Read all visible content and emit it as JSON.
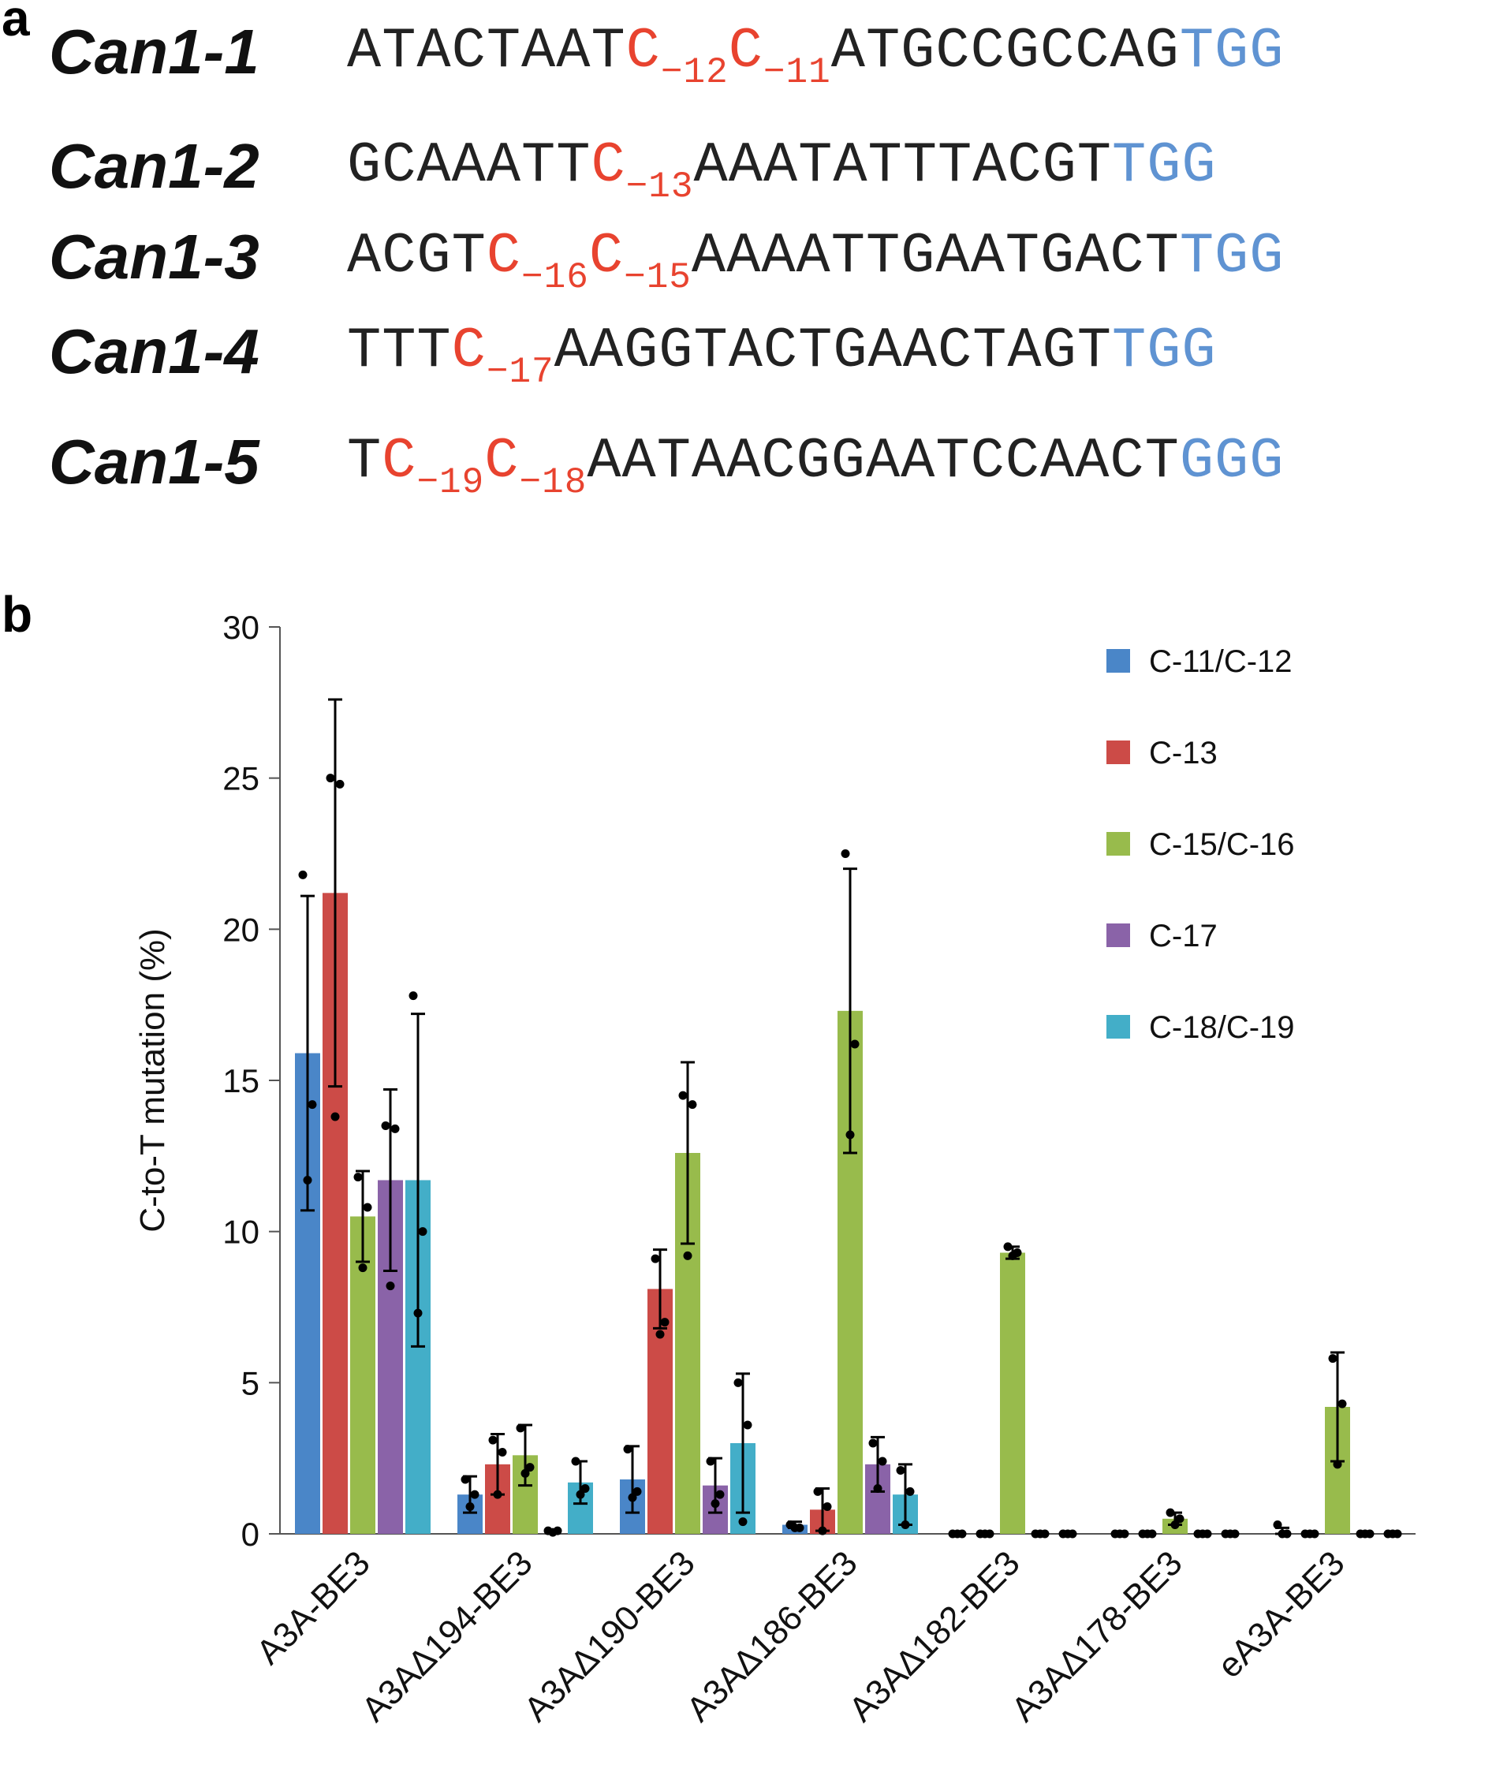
{
  "panel_a": {
    "label": "a",
    "rows": [
      {
        "name": "Can1-1",
        "segments": [
          {
            "text": "ATACTAAT",
            "color": "black"
          },
          {
            "text": "C",
            "sub": "−12",
            "color": "red"
          },
          {
            "text": "C",
            "sub": "−11",
            "color": "red"
          },
          {
            "text": "ATGCCGCCAG",
            "color": "black"
          },
          {
            "text": "TGG",
            "color": "blue"
          }
        ]
      },
      {
        "name": "Can1-2",
        "segments": [
          {
            "text": "GCAAATT",
            "color": "black"
          },
          {
            "text": "C",
            "sub": "−13",
            "color": "red"
          },
          {
            "text": "AAATATTTACGT",
            "color": "black"
          },
          {
            "text": "TGG",
            "color": "blue"
          }
        ]
      },
      {
        "name": "Can1-3",
        "segments": [
          {
            "text": "ACGT",
            "color": "black"
          },
          {
            "text": "C",
            "sub": "−16",
            "color": "red"
          },
          {
            "text": "C",
            "sub": "−15",
            "color": "red"
          },
          {
            "text": "AAAATTGAATGACT",
            "color": "black"
          },
          {
            "text": "TGG",
            "color": "blue"
          }
        ]
      },
      {
        "name": "Can1-4",
        "segments": [
          {
            "text": "TTT",
            "color": "black"
          },
          {
            "text": "C",
            "sub": "−17",
            "color": "red"
          },
          {
            "text": "AAGGTACTGAACTAGT",
            "color": "black"
          },
          {
            "text": "TGG",
            "color": "blue"
          }
        ]
      },
      {
        "name": "Can1-5",
        "segments": [
          {
            "text": "T",
            "color": "black"
          },
          {
            "text": "C",
            "sub": "−19",
            "color": "red"
          },
          {
            "text": "C",
            "sub": "−18",
            "color": "red"
          },
          {
            "text": "AATAACGGAATCCAACT",
            "color": "black"
          },
          {
            "text": "GGG",
            "color": "blue"
          }
        ]
      }
    ]
  },
  "panel_b": {
    "label": "b"
  },
  "colors": {
    "C-11/C-12": "#4a86c8",
    "C-13": "#cc4b47",
    "C-15/C-16": "#98bb4c",
    "C-17": "#8a63a8",
    "C-18/C-19": "#43aec8"
  },
  "chart_data": {
    "type": "bar",
    "title": "",
    "xlabel": "",
    "ylabel": "C-to-T mutation (%)",
    "ylim": [
      0,
      30
    ],
    "yticks": [
      0,
      5,
      10,
      15,
      20,
      25,
      30
    ],
    "legend_position": "top-right",
    "categories": [
      "A3A-BE3",
      "A3AΔ194-BE3",
      "A3AΔ190-BE3",
      "A3AΔ186-BE3",
      "A3AΔ182-BE3",
      "A3AΔ178-BE3",
      "eA3A-BE3"
    ],
    "series": [
      {
        "name": "C-11/C-12",
        "values": [
          15.9,
          1.3,
          1.8,
          0.3,
          0,
          0,
          0.1
        ],
        "errors": [
          5.2,
          0.6,
          1.1,
          0.1,
          0,
          0,
          0.1
        ],
        "points": [
          [
            21.8,
            14.2,
            11.7
          ],
          [
            1.8,
            1.3,
            0.9
          ],
          [
            2.8,
            1.4,
            1.2
          ],
          [
            0.3,
            0.2,
            0.2
          ],
          [
            0,
            0,
            0
          ],
          [
            0,
            0,
            0
          ],
          [
            0.3,
            0,
            0
          ]
        ]
      },
      {
        "name": "C-13",
        "values": [
          21.2,
          2.3,
          8.1,
          0.8,
          0,
          0,
          0
        ],
        "errors": [
          6.4,
          1.0,
          1.3,
          0.7,
          0,
          0,
          0
        ],
        "points": [
          [
            25.0,
            24.8,
            13.8
          ],
          [
            3.1,
            2.7,
            1.3
          ],
          [
            9.1,
            7.0,
            6.6
          ],
          [
            1.4,
            0.9,
            0.1
          ],
          [
            0,
            0,
            0
          ],
          [
            0,
            0,
            0
          ],
          [
            0,
            0,
            0
          ]
        ]
      },
      {
        "name": "C-15/C-16",
        "values": [
          10.5,
          2.6,
          12.6,
          17.3,
          9.3,
          0.5,
          4.2
        ],
        "errors": [
          1.5,
          1.0,
          3.0,
          4.7,
          0.2,
          0.2,
          1.8
        ],
        "points": [
          [
            11.8,
            10.8,
            8.8
          ],
          [
            3.5,
            2.2,
            2.0
          ],
          [
            14.5,
            14.2,
            9.2
          ],
          [
            22.5,
            16.2,
            13.2
          ],
          [
            9.5,
            9.3,
            9.2
          ],
          [
            0.7,
            0.5,
            0.3
          ],
          [
            5.8,
            4.3,
            2.3
          ]
        ]
      },
      {
        "name": "C-17",
        "values": [
          11.7,
          0.1,
          1.6,
          2.3,
          0,
          0,
          0
        ],
        "errors": [
          3.0,
          0.05,
          0.9,
          0.9,
          0,
          0,
          0
        ],
        "points": [
          [
            13.5,
            13.4,
            8.2
          ],
          [
            0.1,
            0.1,
            0.05
          ],
          [
            2.4,
            1.3,
            1.0
          ],
          [
            3.0,
            2.4,
            1.5
          ],
          [
            0,
            0,
            0
          ],
          [
            0,
            0,
            0
          ],
          [
            0,
            0,
            0
          ]
        ]
      },
      {
        "name": "C-18/C-19",
        "values": [
          11.7,
          1.7,
          3.0,
          1.3,
          0,
          0,
          0
        ],
        "errors": [
          5.5,
          0.7,
          2.3,
          1.0,
          0,
          0,
          0
        ],
        "points": [
          [
            17.8,
            10.0,
            7.3
          ],
          [
            2.4,
            1.5,
            1.3
          ],
          [
            5.0,
            3.6,
            0.4
          ],
          [
            2.1,
            1.4,
            0.3
          ],
          [
            0,
            0,
            0
          ],
          [
            0,
            0,
            0
          ],
          [
            0,
            0,
            0
          ]
        ]
      }
    ]
  }
}
